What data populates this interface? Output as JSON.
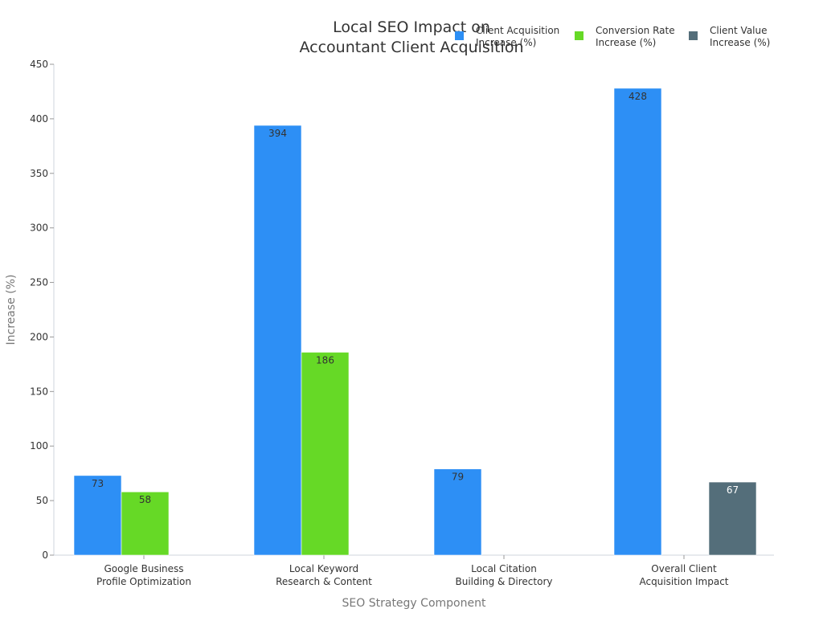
{
  "chart_data": {
    "type": "bar",
    "title_lines": [
      "Local SEO Impact on",
      "Accountant Client Acquisition"
    ],
    "xlabel": "SEO Strategy Component",
    "ylabel": "Increase (%)",
    "ylim": [
      0,
      450
    ],
    "yticks": [
      0,
      50,
      100,
      150,
      200,
      250,
      300,
      350,
      400,
      450
    ],
    "grid": false,
    "legend_position": "top-right",
    "categories": [
      [
        "Google Business",
        "Profile Optimization"
      ],
      [
        "Local Keyword",
        "Research & Content"
      ],
      [
        "Local Citation",
        "Building & Directory"
      ],
      [
        "Overall Client",
        "Acquisition Impact"
      ]
    ],
    "series": [
      {
        "name_lines": [
          "Client Acquisition",
          "Increase (%)"
        ],
        "color": "#2d8ff5",
        "label_color": "#333333",
        "values": [
          73,
          394,
          79,
          428
        ]
      },
      {
        "name_lines": [
          "Conversion Rate",
          "Increase (%)"
        ],
        "color": "#66d926",
        "label_color": "#333333",
        "values": [
          58,
          186,
          null,
          null
        ]
      },
      {
        "name_lines": [
          "Client Value",
          "Increase (%)"
        ],
        "color": "#546e7a",
        "label_color": "#ffffff",
        "values": [
          null,
          null,
          null,
          67
        ]
      }
    ]
  }
}
